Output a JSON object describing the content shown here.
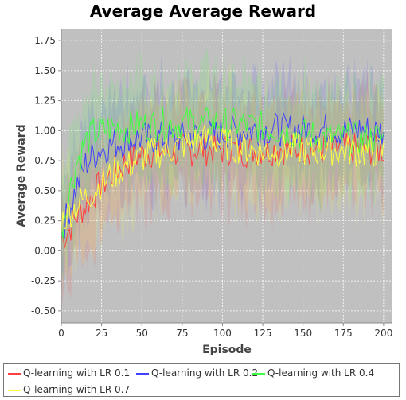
{
  "chart_data": {
    "type": "line",
    "title": "Average Average Reward",
    "xlabel": "Episode",
    "ylabel": "Average Reward",
    "xlim": [
      0,
      205
    ],
    "ylim": [
      -0.6,
      1.85
    ],
    "xticks": [
      "0",
      "25",
      "50",
      "75",
      "100",
      "125",
      "150",
      "175",
      "200"
    ],
    "yticks": [
      "-0.50",
      "-0.25",
      "0.00",
      "0.25",
      "0.50",
      "0.75",
      "1.00",
      "1.25",
      "1.50",
      "1.75"
    ],
    "grid": true,
    "legend_position": "bottom",
    "background": "#c0c0c0",
    "series": [
      {
        "name": "Q-learning with LR 0.1",
        "color": "#ff4040",
        "points": [
          [
            0,
            0.1
          ],
          [
            5,
            0.18
          ],
          [
            10,
            0.3
          ],
          [
            15,
            0.38
          ],
          [
            20,
            0.48
          ],
          [
            25,
            0.55
          ],
          [
            30,
            0.62
          ],
          [
            35,
            0.68
          ],
          [
            40,
            0.74
          ],
          [
            45,
            0.78
          ],
          [
            50,
            0.8
          ],
          [
            55,
            0.82
          ],
          [
            60,
            0.84
          ],
          [
            65,
            0.83
          ],
          [
            70,
            0.82
          ],
          [
            75,
            0.84
          ],
          [
            80,
            0.83
          ],
          [
            85,
            0.85
          ],
          [
            90,
            0.84
          ],
          [
            95,
            0.85
          ],
          [
            100,
            0.84
          ],
          [
            105,
            0.85
          ],
          [
            110,
            0.84
          ],
          [
            115,
            0.83
          ],
          [
            120,
            0.84
          ],
          [
            125,
            0.85
          ],
          [
            130,
            0.84
          ],
          [
            135,
            0.86
          ],
          [
            140,
            0.85
          ],
          [
            145,
            0.84
          ],
          [
            150,
            0.86
          ],
          [
            155,
            0.85
          ],
          [
            160,
            0.84
          ],
          [
            165,
            0.85
          ],
          [
            170,
            0.86
          ],
          [
            175,
            0.85
          ],
          [
            180,
            0.84
          ],
          [
            185,
            0.86
          ],
          [
            190,
            0.85
          ],
          [
            195,
            0.84
          ],
          [
            200,
            0.84
          ]
        ]
      },
      {
        "name": "Q-learning with LR 0.2",
        "color": "#4040ff",
        "points": [
          [
            0,
            0.15
          ],
          [
            5,
            0.35
          ],
          [
            10,
            0.55
          ],
          [
            15,
            0.72
          ],
          [
            20,
            0.8
          ],
          [
            25,
            0.85
          ],
          [
            30,
            0.88
          ],
          [
            35,
            0.9
          ],
          [
            40,
            0.92
          ],
          [
            45,
            0.93
          ],
          [
            50,
            0.94
          ],
          [
            55,
            0.93
          ],
          [
            60,
            0.95
          ],
          [
            65,
            0.94
          ],
          [
            70,
            0.93
          ],
          [
            75,
            0.95
          ],
          [
            80,
            0.96
          ],
          [
            85,
            0.95
          ],
          [
            90,
            0.96
          ],
          [
            95,
            0.97
          ],
          [
            100,
            0.98
          ],
          [
            105,
            0.99
          ],
          [
            110,
            1.0
          ],
          [
            115,
            1.0
          ],
          [
            120,
            1.01
          ],
          [
            125,
            1.0
          ],
          [
            130,
            1.02
          ],
          [
            135,
            1.01
          ],
          [
            140,
            1.0
          ],
          [
            145,
            1.02
          ],
          [
            150,
            1.01
          ],
          [
            155,
            1.0
          ],
          [
            160,
            1.01
          ],
          [
            165,
            1.02
          ],
          [
            170,
            1.01
          ],
          [
            175,
            1.0
          ],
          [
            180,
            1.0
          ],
          [
            185,
            1.01
          ],
          [
            190,
            1.0
          ],
          [
            195,
            0.99
          ],
          [
            200,
            1.0
          ]
        ]
      },
      {
        "name": "Q-learning with LR 0.4",
        "color": "#40ff40",
        "points": [
          [
            0,
            0.15
          ],
          [
            5,
            0.5
          ],
          [
            10,
            0.75
          ],
          [
            15,
            0.9
          ],
          [
            20,
            0.98
          ],
          [
            25,
            1.0
          ],
          [
            30,
            1.02
          ],
          [
            35,
            1.03
          ],
          [
            40,
            1.02
          ],
          [
            45,
            1.04
          ],
          [
            50,
            1.05
          ],
          [
            55,
            1.04
          ],
          [
            60,
            1.05
          ],
          [
            65,
            1.06
          ],
          [
            70,
            1.05
          ],
          [
            75,
            1.06
          ],
          [
            80,
            1.07
          ],
          [
            85,
            1.05
          ],
          [
            90,
            1.06
          ],
          [
            95,
            1.07
          ],
          [
            100,
            1.06
          ],
          [
            105,
            1.05
          ],
          [
            110,
            1.06
          ],
          [
            115,
            1.05
          ],
          [
            120,
            1.04
          ],
          [
            125,
            1.03
          ],
          [
            130,
            1.02
          ],
          [
            135,
            1.01
          ],
          [
            140,
            1.0
          ],
          [
            145,
            0.98
          ],
          [
            150,
            0.97
          ],
          [
            155,
            0.96
          ],
          [
            160,
            0.95
          ],
          [
            165,
            0.94
          ],
          [
            170,
            0.94
          ],
          [
            175,
            0.93
          ],
          [
            180,
            0.93
          ],
          [
            185,
            0.94
          ],
          [
            190,
            0.93
          ],
          [
            195,
            0.94
          ],
          [
            200,
            0.93
          ]
        ]
      },
      {
        "name": "Q-learning with LR 0.7",
        "color": "#ffff40",
        "points": [
          [
            0,
            0.25
          ],
          [
            5,
            0.32
          ],
          [
            10,
            0.38
          ],
          [
            15,
            0.44
          ],
          [
            20,
            0.5
          ],
          [
            25,
            0.56
          ],
          [
            30,
            0.62
          ],
          [
            35,
            0.66
          ],
          [
            40,
            0.7
          ],
          [
            45,
            0.74
          ],
          [
            50,
            0.78
          ],
          [
            55,
            0.8
          ],
          [
            60,
            0.82
          ],
          [
            65,
            0.84
          ],
          [
            70,
            0.86
          ],
          [
            75,
            0.88
          ],
          [
            80,
            0.9
          ],
          [
            85,
            0.92
          ],
          [
            90,
            0.93
          ],
          [
            95,
            0.92
          ],
          [
            100,
            0.9
          ],
          [
            105,
            0.88
          ],
          [
            110,
            0.86
          ],
          [
            115,
            0.85
          ],
          [
            120,
            0.84
          ],
          [
            125,
            0.83
          ],
          [
            130,
            0.84
          ],
          [
            135,
            0.83
          ],
          [
            140,
            0.84
          ],
          [
            145,
            0.85
          ],
          [
            150,
            0.84
          ],
          [
            155,
            0.83
          ],
          [
            160,
            0.84
          ],
          [
            165,
            0.85
          ],
          [
            170,
            0.84
          ],
          [
            175,
            0.83
          ],
          [
            180,
            0.84
          ],
          [
            185,
            0.83
          ],
          [
            190,
            0.82
          ],
          [
            195,
            0.83
          ],
          [
            200,
            0.82
          ]
        ]
      }
    ]
  }
}
